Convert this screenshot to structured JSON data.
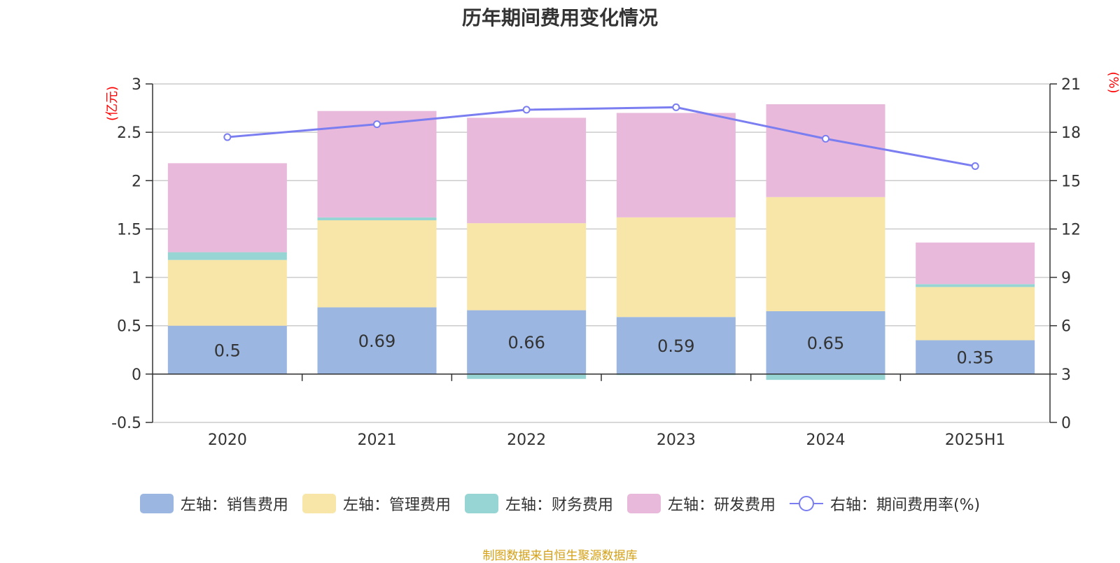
{
  "chart_data": {
    "type": "bar",
    "title": "历年期间费用变化情况",
    "categories": [
      "2020",
      "2021",
      "2022",
      "2023",
      "2024",
      "2025H1"
    ],
    "y_left": {
      "label": "(亿元)",
      "min": -0.5,
      "max": 3,
      "ticks": [
        "-0.5",
        "0",
        "0.5",
        "1",
        "1.5",
        "2",
        "2.5",
        "3"
      ]
    },
    "y_right": {
      "label": "(%)",
      "min": 0,
      "max": 21,
      "ticks": [
        "0",
        "3",
        "6",
        "9",
        "12",
        "15",
        "18",
        "21"
      ]
    },
    "series": [
      {
        "name": "左轴：销售费用",
        "type": "bar",
        "axis": "left",
        "color": "#9bb7e1",
        "values": [
          0.5,
          0.69,
          0.66,
          0.59,
          0.65,
          0.35
        ],
        "labels": [
          "0.5",
          "0.69",
          "0.66",
          "0.59",
          "0.65",
          "0.35"
        ]
      },
      {
        "name": "左轴：管理费用",
        "type": "bar",
        "axis": "left",
        "color": "#f8e6a8",
        "values": [
          0.68,
          0.9,
          0.9,
          1.03,
          1.18,
          0.55
        ]
      },
      {
        "name": "左轴：财务费用",
        "type": "bar",
        "axis": "left",
        "color": "#97d5d5",
        "values": [
          0.08,
          0.03,
          -0.05,
          -0.01,
          -0.06,
          0.03
        ]
      },
      {
        "name": "左轴：研发费用",
        "type": "bar",
        "axis": "left",
        "color": "#e8b9da",
        "values": [
          0.92,
          1.1,
          1.09,
          1.08,
          0.96,
          0.43
        ]
      },
      {
        "name": "右轴：期间费用率(%)",
        "type": "line",
        "axis": "right",
        "color": "#7b7ef0",
        "values": [
          17.7,
          18.5,
          19.4,
          19.55,
          17.6,
          15.9
        ]
      }
    ],
    "grid": true,
    "legend_position": "bottom"
  },
  "source_note": "制图数据来自恒生聚源数据库"
}
